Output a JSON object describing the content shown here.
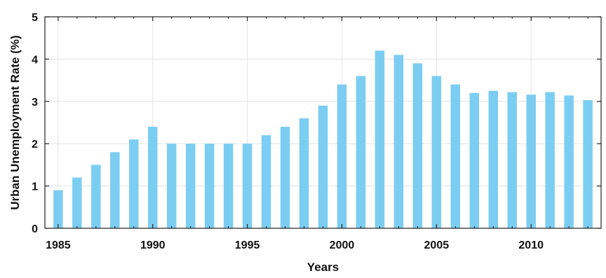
{
  "chart_data": {
    "type": "bar",
    "title": "",
    "xlabel": "Years",
    "ylabel": "Urban Unemployment Rate (%)",
    "x": [
      1985,
      1986,
      1987,
      1988,
      1989,
      1990,
      1991,
      1992,
      1993,
      1994,
      1995,
      1996,
      1997,
      1998,
      1999,
      2000,
      2001,
      2002,
      2003,
      2004,
      2005,
      2006,
      2007,
      2008,
      2009,
      2010,
      2011,
      2012,
      2013
    ],
    "values": [
      0.9,
      1.2,
      1.5,
      1.8,
      2.1,
      2.4,
      2.0,
      2.0,
      2.0,
      2.0,
      2.0,
      2.2,
      2.4,
      2.6,
      2.9,
      3.4,
      3.6,
      4.2,
      4.1,
      3.9,
      3.6,
      3.4,
      3.2,
      3.25,
      3.22,
      3.16,
      3.22,
      3.14,
      3.03
    ],
    "xlim": [
      1984.3,
      1913.7
    ],
    "ylim": [
      0,
      5
    ],
    "x_ticks": [
      1985,
      1990,
      1995,
      2000,
      2005,
      2010
    ],
    "y_ticks": [
      0,
      1,
      2,
      3,
      4,
      5
    ],
    "grid": true,
    "bar_color": "#7ccdf2"
  }
}
